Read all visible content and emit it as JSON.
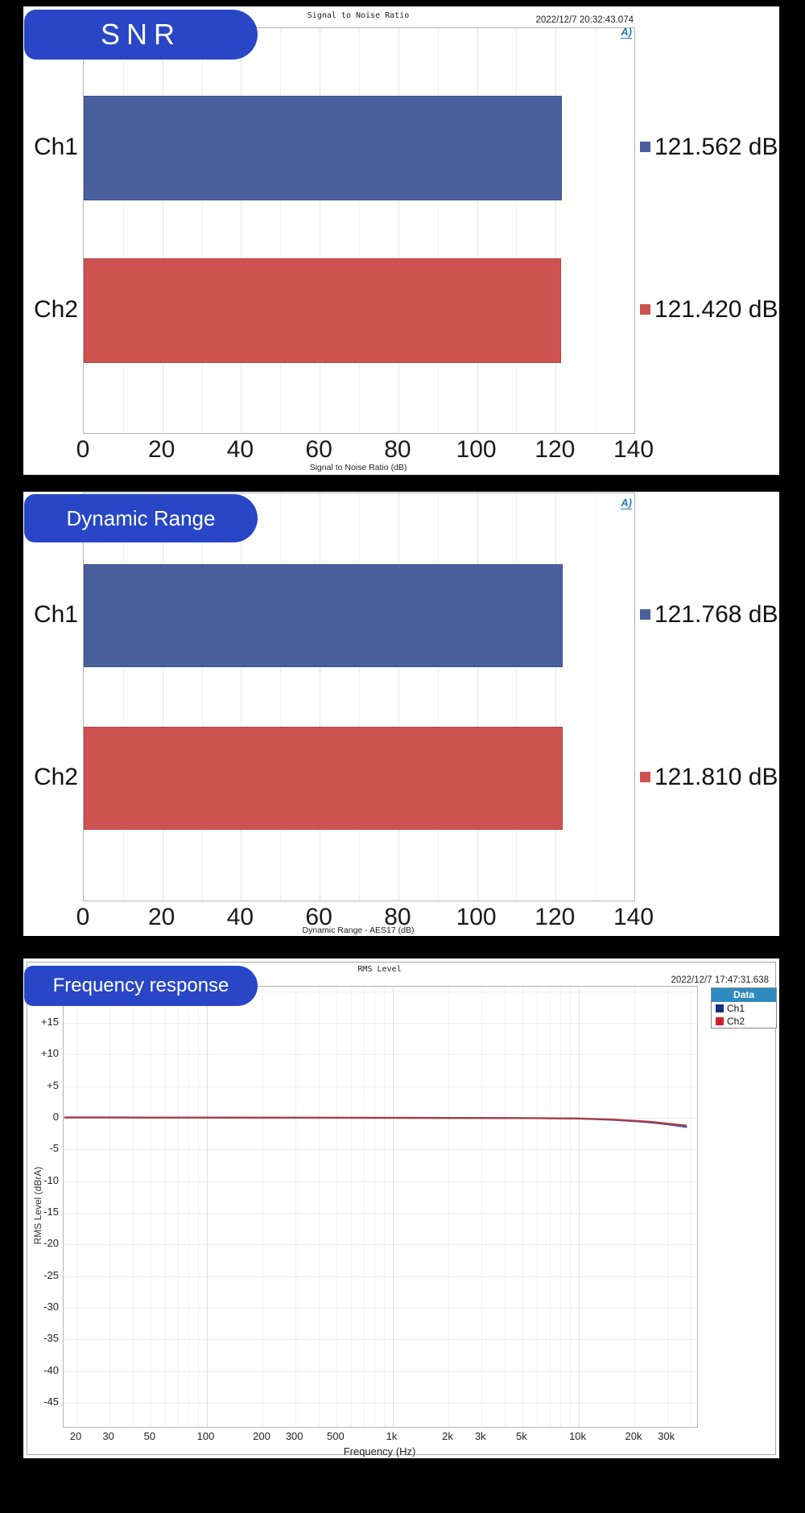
{
  "icons": {
    "ap_logo_glyph": "A)"
  },
  "colors": {
    "background": "#000000",
    "badge_blue": "#2846c6",
    "bar_blue": "#4a5f9e",
    "bar_red": "#cd5250",
    "legend_header_bg": "#2e8bc0",
    "legend_ch1": "#1a2a80",
    "legend_ch2": "#cf2026",
    "curve_ch1": "#4060a8",
    "curve_ch2": "#aa3a46",
    "ap_logo": "#1f7ac0"
  },
  "snr_panel": {
    "badge": "SNR",
    "title": "Signal to Noise Ratio",
    "timestamp": "2022/12/7 20:32:43.074",
    "xlabel": "Signal to Noise Ratio (dB)"
  },
  "dr_panel": {
    "badge": "Dynamic Range",
    "xlabel": "Dynamic Range - AES17 (dB)"
  },
  "fr_panel": {
    "badge": "Frequency response",
    "title": "RMS Level",
    "timestamp": "2022/12/7 17:47:31.638",
    "xlabel": "Frequency (Hz)",
    "ylabel": "RMS Level (dBrA)",
    "legend": {
      "header": "Data",
      "items": [
        {
          "label": "Ch1"
        },
        {
          "label": "Ch2"
        }
      ]
    }
  },
  "chart_data": [
    {
      "id": "snr",
      "type": "bar",
      "orientation": "horizontal",
      "title": "Signal to Noise Ratio",
      "categories": [
        "Ch1",
        "Ch2"
      ],
      "values": [
        121.562,
        121.42
      ],
      "value_labels": [
        "121.562 dB",
        "121.420 dB"
      ],
      "bar_colors": [
        "#4a5f9e",
        "#cd5250"
      ],
      "xlim": [
        0,
        140
      ],
      "xticks": [
        0,
        20,
        40,
        60,
        80,
        100,
        120,
        140
      ],
      "xlabel": "Signal to Noise Ratio (dB)",
      "grid": true,
      "legend_position": "none"
    },
    {
      "id": "dynamic_range",
      "type": "bar",
      "orientation": "horizontal",
      "title": "Dynamic Range",
      "categories": [
        "Ch1",
        "Ch2"
      ],
      "values": [
        121.768,
        121.81
      ],
      "value_labels": [
        "121.768 dB",
        "121.810 dB"
      ],
      "bar_colors": [
        "#4a5f9e",
        "#cd5250"
      ],
      "xlim": [
        0,
        140
      ],
      "xticks": [
        0,
        20,
        40,
        60,
        80,
        100,
        120,
        140
      ],
      "xlabel": "Dynamic Range - AES17 (dB)",
      "grid": true,
      "legend_position": "none"
    },
    {
      "id": "frequency_response",
      "type": "line",
      "title": "RMS Level",
      "xscale": "log",
      "xlim": [
        17,
        43500
      ],
      "ylim": [
        -48.5,
        20.7
      ],
      "yticks": [
        15,
        10,
        5,
        0,
        -5,
        -10,
        -15,
        -20,
        -25,
        -30,
        -35,
        -40,
        -45
      ],
      "ytick_labels": [
        "+15",
        "+10",
        "+5",
        "0",
        "-5",
        "-10",
        "-15",
        "-20",
        "-25",
        "-30",
        "-35",
        "-40",
        "-45"
      ],
      "xticks": [
        20,
        30,
        50,
        100,
        200,
        300,
        500,
        1000,
        2000,
        3000,
        5000,
        10000,
        20000,
        30000
      ],
      "xtick_labels": [
        "20",
        "30",
        "50",
        "100",
        "200",
        "300",
        "500",
        "1k",
        "2k",
        "3k",
        "5k",
        "10k",
        "20k",
        "30k"
      ],
      "xlabel": "Frequency (Hz)",
      "ylabel": "RMS Level (dBrA)",
      "legend_position": "top-right",
      "grid": true,
      "series": [
        {
          "name": "Ch1",
          "color": "#4060a8",
          "points": [
            [
              17.3,
              0.06
            ],
            [
              20,
              0.06
            ],
            [
              50,
              0.05
            ],
            [
              100,
              0.05
            ],
            [
              300,
              0.03
            ],
            [
              1000,
              0.0
            ],
            [
              2000,
              -0.01
            ],
            [
              5000,
              -0.04
            ],
            [
              8000,
              -0.08
            ],
            [
              10000,
              -0.12
            ],
            [
              15000,
              -0.3
            ],
            [
              20000,
              -0.52
            ],
            [
              25000,
              -0.75
            ],
            [
              30000,
              -1.02
            ],
            [
              35000,
              -1.3
            ],
            [
              38000,
              -1.45
            ]
          ]
        },
        {
          "name": "Ch2",
          "color": "#aa3a46",
          "points": [
            [
              17.3,
              0.06
            ],
            [
              20,
              0.06
            ],
            [
              50,
              0.05
            ],
            [
              100,
              0.05
            ],
            [
              300,
              0.03
            ],
            [
              1000,
              0.0
            ],
            [
              2000,
              -0.01
            ],
            [
              5000,
              -0.04
            ],
            [
              8000,
              -0.07
            ],
            [
              10000,
              -0.1
            ],
            [
              15000,
              -0.26
            ],
            [
              20000,
              -0.46
            ],
            [
              25000,
              -0.65
            ],
            [
              30000,
              -0.9
            ],
            [
              35000,
              -1.1
            ],
            [
              38000,
              -1.22
            ]
          ]
        }
      ]
    }
  ]
}
